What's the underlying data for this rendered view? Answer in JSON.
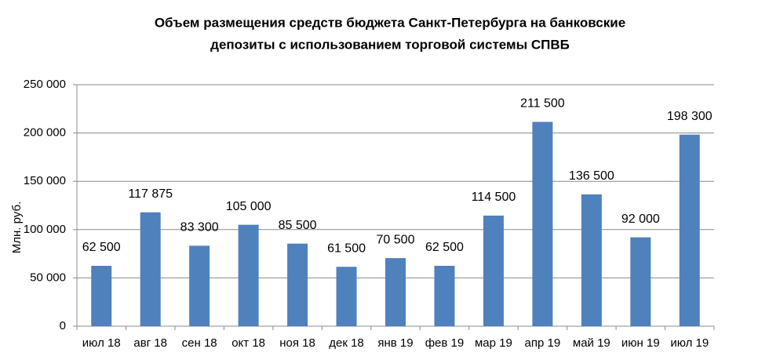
{
  "chart_data": {
    "type": "bar",
    "title": [
      "Объем размещения средств бюджета Санкт-Петербурга на банковские",
      "депозиты с использованием торговой системы СПВБ"
    ],
    "y_label": "Млн. руб.",
    "categories": [
      "июл 18",
      "авг 18",
      "сен 18",
      "окт 18",
      "ноя 18",
      "дек 18",
      "янв 19",
      "фев 19",
      "мар 19",
      "апр 19",
      "май 19",
      "июн 19",
      "июл 19"
    ],
    "values": [
      62500,
      117875,
      83300,
      105000,
      85500,
      61500,
      70500,
      62500,
      114500,
      211500,
      136500,
      92000,
      198300
    ],
    "value_labels": [
      "62 500",
      "117 875",
      "83 300",
      "105 000",
      "85 500",
      "61 500",
      "70 500",
      "62 500",
      "114 500",
      "211 500",
      "136 500",
      "92 000",
      "198 300"
    ],
    "color": "#4f81bd",
    "ylim": [
      0,
      250000
    ],
    "yticks": [
      0,
      {
        "value": 50000,
        "label": "50 000"
      },
      {
        "value": 100000,
        "label": "100 000"
      },
      {
        "value": 150000,
        "label": "150 000"
      },
      {
        "value": 200000,
        "label": "200 000"
      },
      {
        "value": 250000,
        "label": "250 000"
      }
    ],
    "grid": true
  }
}
